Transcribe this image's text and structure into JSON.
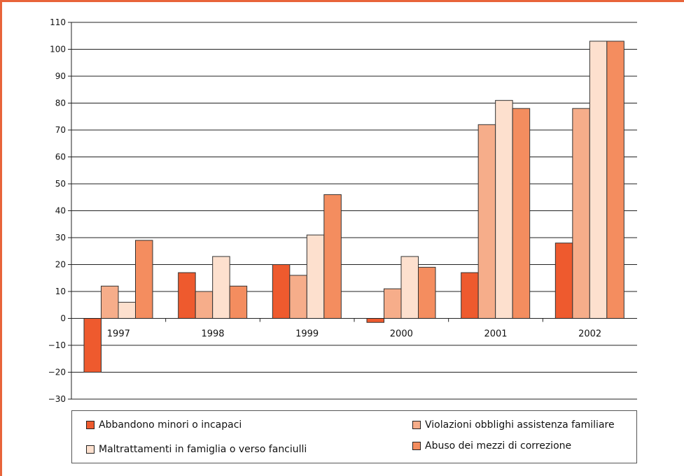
{
  "chart_data": {
    "type": "bar",
    "categories": [
      "1997",
      "1998",
      "1999",
      "2000",
      "2001",
      "2002"
    ],
    "series": [
      {
        "name": "Abbandono minori o incapaci",
        "color": "#ee5a2e",
        "values": [
          -20,
          17,
          20,
          -1.5,
          17,
          28
        ]
      },
      {
        "name": "Violazioni obblighi assistenza familiare",
        "color": "#f6ad8a",
        "values": [
          12,
          10,
          16,
          11,
          72,
          78
        ]
      },
      {
        "name": "Maltrattamenti in famiglia o verso fanciulli",
        "color": "#fde0ce",
        "values": [
          6,
          23,
          31,
          23,
          81,
          103
        ]
      },
      {
        "name": "Abuso dei mezzi di correzione",
        "color": "#f48d5f",
        "values": [
          29,
          12,
          46,
          19,
          78,
          103
        ]
      }
    ],
    "yticks": [
      "110",
      "100",
      "90",
      "80",
      "70",
      "60",
      "50",
      "40",
      "30",
      "20",
      "10",
      "0",
      "−10",
      "−20",
      "−30"
    ],
    "ylim": [
      -30,
      110
    ],
    "grid": true,
    "legend_position": "bottom",
    "title": "",
    "xlabel": "",
    "ylabel": ""
  }
}
